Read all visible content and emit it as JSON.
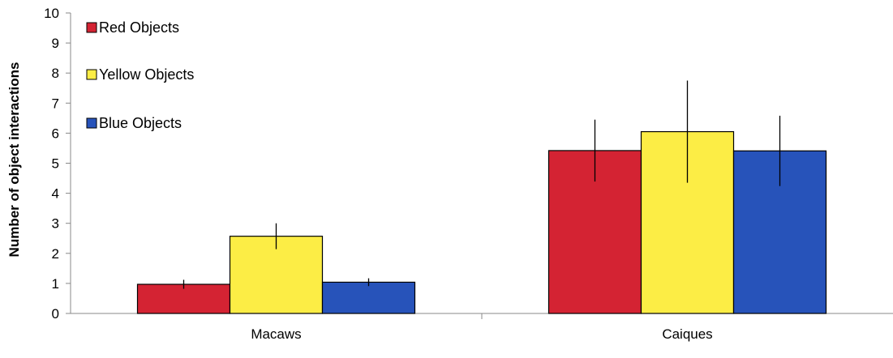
{
  "chart_data": {
    "type": "bar",
    "title": "",
    "xlabel": "",
    "ylabel": "Number of object interactions",
    "ylim": [
      0,
      10
    ],
    "yticks": [
      0,
      1,
      2,
      3,
      4,
      5,
      6,
      7,
      8,
      9,
      10
    ],
    "grid": false,
    "legend_position": "top-left",
    "categories": [
      "Macaws",
      "Caiques"
    ],
    "series": [
      {
        "name": "Red Objects",
        "color": "#d42333",
        "values": [
          0.97,
          5.42
        ],
        "error": [
          0.15,
          1.03
        ]
      },
      {
        "name": "Yellow Objects",
        "color": "#fced45",
        "values": [
          2.57,
          6.05
        ],
        "error": [
          0.43,
          1.7
        ]
      },
      {
        "name": "Blue Objects",
        "color": "#2753ba",
        "values": [
          1.04,
          5.41
        ],
        "error": [
          0.13,
          1.17
        ]
      }
    ]
  }
}
